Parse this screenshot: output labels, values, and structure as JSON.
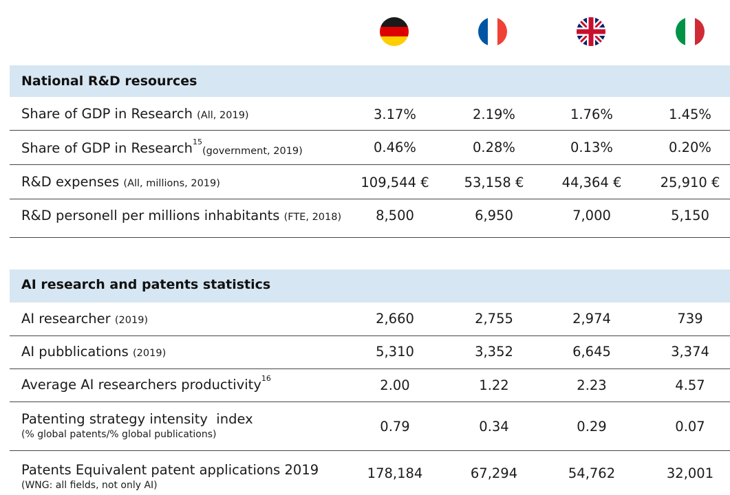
{
  "countries": [
    {
      "name": "Germany",
      "icon": "germany-flag-icon"
    },
    {
      "name": "France",
      "icon": "france-flag-icon"
    },
    {
      "name": "United Kingdom",
      "icon": "uk-flag-icon"
    },
    {
      "name": "Italy",
      "icon": "italy-flag-icon"
    }
  ],
  "sections": [
    {
      "title": "National R&D resources",
      "rows": [
        {
          "label": "Share of GDP in Research",
          "note": "(All, 2019)",
          "values": [
            "3.17%",
            "2.19%",
            "1.76%",
            "1.45%"
          ]
        },
        {
          "label": "Share of GDP in Research",
          "sup": "15",
          "note": "(government, 2019)",
          "values": [
            "0.46%",
            "0.28%",
            "0.13%",
            "0.20%"
          ]
        },
        {
          "label": "R&D expenses",
          "note": "(All, millions, 2019)",
          "values": [
            "109,544 €",
            "53,158 €",
            "44,364 €",
            "25,910 €"
          ]
        },
        {
          "label": "R&D personell per millions inhabitants",
          "note": "(FTE, 2018)",
          "values": [
            "8,500",
            "6,950",
            "7,000",
            "5,150"
          ]
        }
      ]
    },
    {
      "title": "AI research and patents statistics",
      "rows": [
        {
          "label": "AI researcher",
          "note": "(2019)",
          "values": [
            "2,660",
            "2,755",
            "2,974",
            "739"
          ]
        },
        {
          "label": "AI pubblications",
          "note": "(2019)",
          "values": [
            "5,310",
            "3,352",
            "6,645",
            "3,374"
          ]
        },
        {
          "label": "Average AI researchers productivity",
          "sup": "16",
          "values": [
            "2.00",
            "1.22",
            "2.23",
            "4.57"
          ]
        },
        {
          "label": "Patenting strategy intensity  index",
          "subnote": "(% global patents/% global publications)",
          "values": [
            "0.79",
            "0.34",
            "0.29",
            "0.07"
          ]
        },
        {
          "label": "Patents Equivalent patent applications 2019",
          "subnote": "(WNG: all fields, not only AI)",
          "values": [
            "178,184",
            "67,294",
            "54,762",
            "32,001"
          ]
        }
      ]
    }
  ],
  "colors": {
    "header_bg": "#d6e6f2",
    "rule": "#444444"
  }
}
